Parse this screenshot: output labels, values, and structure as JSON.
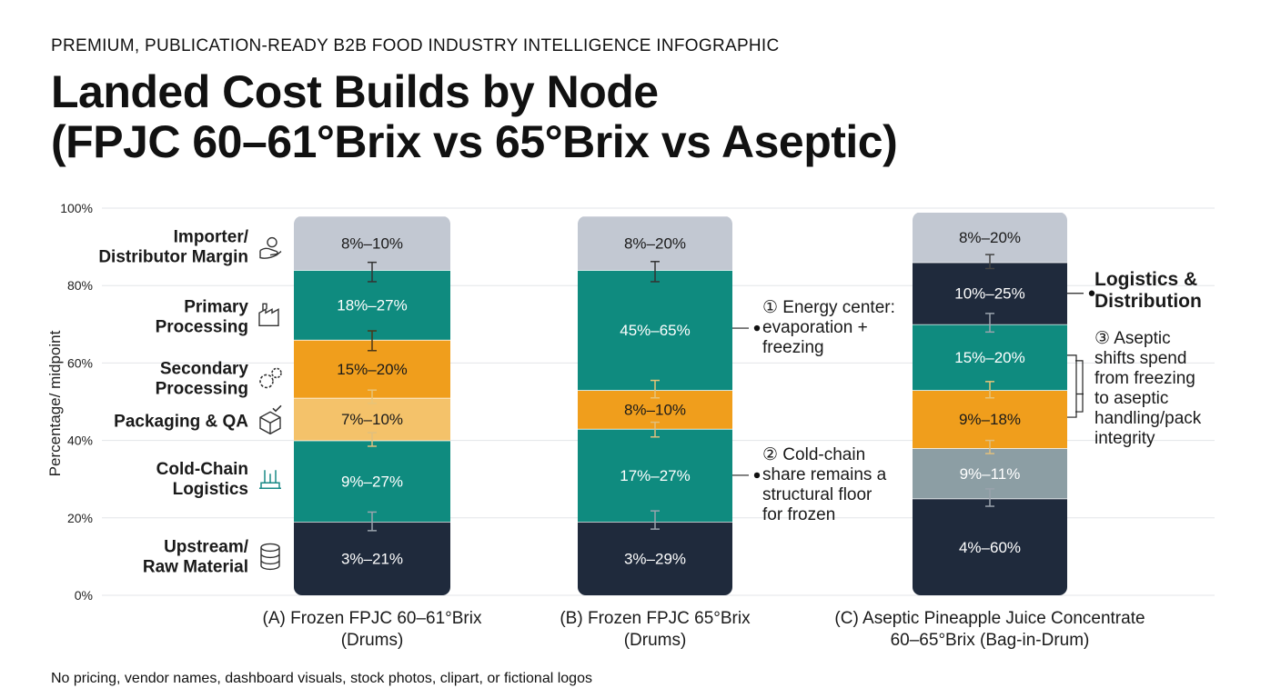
{
  "header": {
    "kicker": "PREMIUM, PUBLICATION-READY B2B FOOD INDUSTRY INTELLIGENCE INFOGRAPHIC",
    "title_line1": "Landed Cost Builds by Node",
    "title_line2": "(FPJC 60–61°Brix vs 65°Brix vs Aseptic)"
  },
  "footer": "No pricing, vendor names, dashboard visuals, stock photos, clipart, or fictional logos",
  "chart_data": {
    "type": "bar",
    "stacked": true,
    "ylabel": "Percentage/ midpoint",
    "ylim": [
      0,
      100
    ],
    "yticks": [
      "0%",
      "20%",
      "40%",
      "60%",
      "80%",
      "100%"
    ],
    "grid": true,
    "categories": [
      "(A) Frozen FPJC 60–61°Brix (Drums)",
      "(B) Frozen FPJC 65°Brix (Drums)",
      "(C) Aseptic Pineapple Juice Concentrate 60–65°Brix (Bag-in-Drum)"
    ],
    "category_lines": [
      [
        "(A) Frozen FPJC 60–61°Brix",
        "(Drums)"
      ],
      [
        "(B) Frozen FPJC 65°Brix",
        "(Drums)"
      ],
      [
        "(C) Aseptic Pineapple Juice Concentrate",
        "60–65°Brix (Bag-in-Drum)"
      ]
    ],
    "nodes": [
      {
        "name": "Importer/ Distributor Margin",
        "lines": [
          "Importer/",
          "Distributor Margin"
        ],
        "icon": "hand-coin-icon",
        "y": 90
      },
      {
        "name": "Primary Processing",
        "lines": [
          "Primary",
          "Processing"
        ],
        "icon": "factory-icon",
        "y": 72
      },
      {
        "name": "Secondary Processing",
        "lines": [
          "Secondary",
          "Processing"
        ],
        "icon": "gears-icon",
        "y": 56
      },
      {
        "name": "Packaging & QA",
        "lines": [
          "Packaging & QA"
        ],
        "icon": "box-check-icon",
        "y": 45
      },
      {
        "name": "Cold-Chain Logistics",
        "lines": [
          "Cold-Chain",
          "Logistics"
        ],
        "icon": "snowflake-truck-icon",
        "y": 30
      },
      {
        "name": "Upstream/ Raw Material",
        "lines": [
          "Upstream/",
          "Raw Material"
        ],
        "icon": "database-icon",
        "y": 10
      }
    ],
    "bars": [
      {
        "top": 98,
        "segments": [
          {
            "bottom": 0,
            "top": 19,
            "label": "3%–21%",
            "color": "#1f2a3c"
          },
          {
            "bottom": 19,
            "top": 40,
            "label": "9%–27%",
            "color": "#0f8b7f"
          },
          {
            "bottom": 40,
            "top": 51,
            "label": "7%–10%",
            "color": "#f4c26a"
          },
          {
            "bottom": 51,
            "top": 66,
            "label": "15%–20%",
            "color": "#f09e1c"
          },
          {
            "bottom": 66,
            "top": 84,
            "label": "18%–27%",
            "color": "#0f8b7f"
          },
          {
            "bottom": 84,
            "top": 98,
            "label": "8%–10%",
            "color": "#c2c8d2"
          }
        ],
        "error_bars": [
          {
            "y": 19.3,
            "hi": 21.5,
            "lo": 16.7,
            "color": "#9aa3ad"
          },
          {
            "y": 40.5,
            "hi": 42,
            "lo": 38.5,
            "color": "#e0bf7e"
          },
          {
            "y": 51.3,
            "hi": 53,
            "lo": 49.6,
            "color": "#e8c477"
          },
          {
            "y": 65.5,
            "hi": 68.3,
            "lo": 63.2,
            "color": "#4a3718"
          },
          {
            "y": 83.5,
            "hi": 86,
            "lo": 81,
            "color": "#333333"
          }
        ]
      },
      {
        "top": 98,
        "segments": [
          {
            "bottom": 0,
            "top": 19,
            "label": "3%–29%",
            "color": "#1f2a3c"
          },
          {
            "bottom": 19,
            "top": 43,
            "label": "17%–27%",
            "color": "#0f8b7f"
          },
          {
            "bottom": 43,
            "top": 53,
            "label": "8%–10%",
            "color": "#f09e1c"
          },
          {
            "bottom": 53,
            "top": 84,
            "label": "45%–65%",
            "color": "#0f8b7f"
          },
          {
            "bottom": 84,
            "top": 98,
            "label": "8%–20%",
            "color": "#c2c8d2"
          }
        ],
        "error_bars": [
          {
            "y": 19.3,
            "hi": 21.8,
            "lo": 17.1,
            "color": "#9aa3ad"
          },
          {
            "y": 42.7,
            "hi": 44.7,
            "lo": 40.9,
            "color": "#e0bf7e"
          },
          {
            "y": 53.1,
            "hi": 55.5,
            "lo": 51,
            "color": "#e8c477"
          },
          {
            "y": 83.8,
            "hi": 86.2,
            "lo": 81,
            "color": "#333333"
          }
        ]
      },
      {
        "top": 99,
        "segments": [
          {
            "bottom": 0,
            "top": 25,
            "label": "4%–60%",
            "color": "#1f2a3c"
          },
          {
            "bottom": 25,
            "top": 38,
            "label": "9%–11%",
            "color": "#8c9ea4"
          },
          {
            "bottom": 38,
            "top": 53,
            "label": "9%–18%",
            "color": "#f09e1c"
          },
          {
            "bottom": 53,
            "top": 70,
            "label": "15%–20%",
            "color": "#0f8b7f"
          },
          {
            "bottom": 70,
            "top": 86,
            "label": "10%–25%",
            "color": "#1f2a3c"
          },
          {
            "bottom": 86,
            "top": 99,
            "label": "8%–20%",
            "color": "#c2c8d2"
          }
        ],
        "error_bars": [
          {
            "y": 25.2,
            "hi": 27.5,
            "lo": 23,
            "color": "#9aa3ad"
          },
          {
            "y": 38.4,
            "hi": 40,
            "lo": 36.6,
            "color": "#e0bf7e"
          },
          {
            "y": 53.1,
            "hi": 55.2,
            "lo": 51,
            "color": "#e8c477"
          },
          {
            "y": 70.2,
            "hi": 72.8,
            "lo": 68,
            "color": "#9aa3ad"
          },
          {
            "y": 86.4,
            "hi": 88,
            "lo": 84.4,
            "color": "#444444"
          }
        ]
      }
    ],
    "annotations": [
      {
        "id": "energy",
        "lines": [
          "① Energy center:",
          "evaporation +",
          "freezing"
        ],
        "target_bar": 1,
        "target_y": 69,
        "text_y": 73,
        "bold": false
      },
      {
        "id": "cold-chain",
        "lines": [
          "② Cold-chain",
          "share remains a",
          "structural floor",
          "for frozen"
        ],
        "target_bar": 1,
        "target_y": 31,
        "text_y": 35,
        "bold": false
      },
      {
        "id": "logistics",
        "lines": [
          "Logistics &",
          "Distribution"
        ],
        "target_bar": 2,
        "target_y": 78,
        "text_y": 80,
        "bold": true
      },
      {
        "id": "aseptic",
        "lines": [
          "③ Aseptic",
          "shifts spend",
          "from freezing",
          "to aseptic",
          "handling/pack",
          "integrity"
        ],
        "target_bar": 2,
        "target_y": 52,
        "text_y": 65,
        "bold": false,
        "bracket": [
          46,
          62
        ]
      }
    ]
  }
}
